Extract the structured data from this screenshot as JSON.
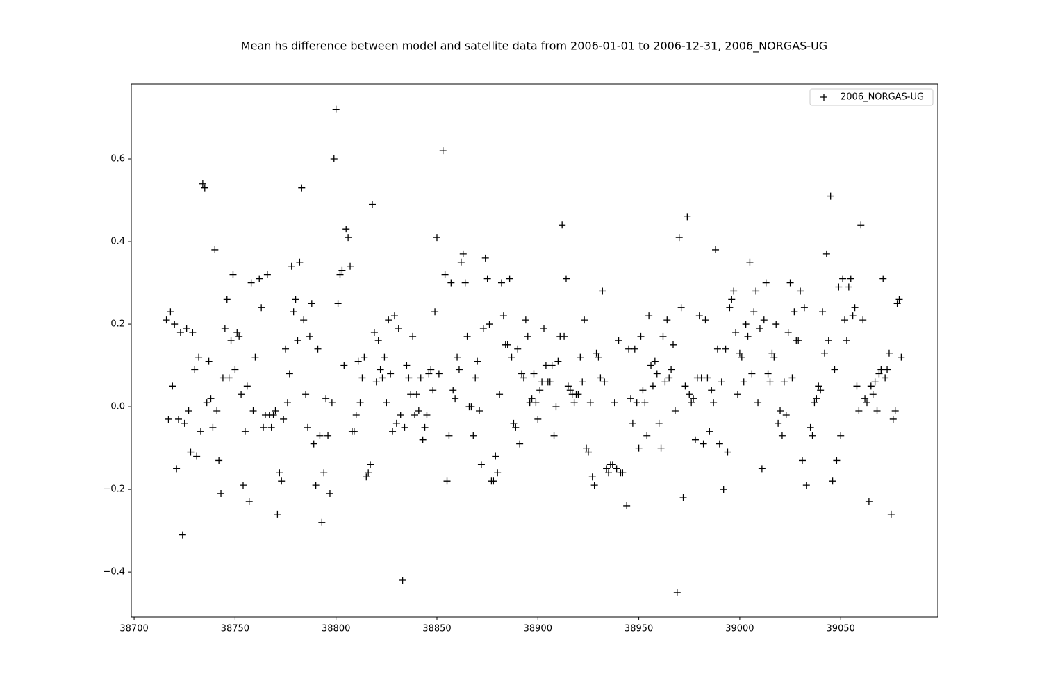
{
  "chart_data": {
    "type": "scatter",
    "title": "Mean hs difference between model and satellite data from 2006-01-01 to 2006-12-31, 2006_NORGAS-UG",
    "marker": "+",
    "legend": "upper right",
    "grid": false,
    "xlim": [
      38698.6,
      39098.1
    ],
    "ylim": [
      -0.509,
      0.7815
    ],
    "xticks": [
      38700,
      38750,
      38800,
      38850,
      38900,
      38950,
      39000,
      39050
    ],
    "yticks": [
      {
        "value": -0.4,
        "label": "−0.4"
      },
      {
        "value": -0.2,
        "label": "−0.2"
      },
      {
        "value": 0,
        "label": "0.0"
      },
      0.2,
      0.4,
      0.6
    ],
    "series": [
      {
        "name": "2006_NORGAS-UG",
        "color": "#000000",
        "x": [
          38716,
          38717,
          38718,
          38719,
          38720,
          38721,
          38722,
          38723,
          38724,
          38725,
          38726,
          38727,
          38728,
          38729,
          38730,
          38731,
          38732,
          38733,
          38734,
          38735,
          38736,
          38737,
          38738,
          38739,
          38740,
          38741,
          38742,
          38743,
          38744,
          38745,
          38746,
          38747,
          38748,
          38749,
          38750,
          38751,
          38752,
          38753,
          38754,
          38755,
          38756,
          38757,
          38758,
          38759,
          38760,
          38762,
          38763,
          38764,
          38765,
          38766,
          38767,
          38768,
          38769,
          38770,
          38771,
          38772,
          38773,
          38774,
          38775,
          38776,
          38777,
          38778,
          38779,
          38780,
          38781,
          38782,
          38783,
          38784,
          38785,
          38786,
          38787,
          38788,
          38789,
          38790,
          38791,
          38792,
          38793,
          38794,
          38795,
          38796,
          38797,
          38798,
          38799,
          38800,
          38801,
          38802,
          38803,
          38804,
          38805,
          38806,
          38807,
          38808,
          38809,
          38810,
          38811,
          38812,
          38813,
          38814,
          38815,
          38816,
          38817,
          38818,
          38819,
          38820,
          38821,
          38822,
          38823,
          38824,
          38825,
          38826,
          38827,
          38828,
          38829,
          38830,
          38831,
          38832,
          38833,
          38834,
          38835,
          38836,
          38837,
          38838,
          38839,
          38840,
          38841,
          38842,
          38843,
          38844,
          38845,
          38846,
          38847,
          38848,
          38849,
          38850,
          38851,
          38853,
          38854,
          38855,
          38856,
          38857,
          38858,
          38859,
          38860,
          38861,
          38862,
          38863,
          38864,
          38865,
          38866,
          38867,
          38868,
          38869,
          38870,
          38871,
          38872,
          38873,
          38874,
          38875,
          38876,
          38877,
          38878,
          38879,
          38880,
          38881,
          38882,
          38883,
          38884,
          38885,
          38886,
          38887,
          38888,
          38889,
          38890,
          38891,
          38892,
          38893,
          38894,
          38895,
          38896,
          38897,
          38898,
          38899,
          38900,
          38901,
          38902,
          38903,
          38904,
          38905,
          38906,
          38907,
          38908,
          38909,
          38910,
          38911,
          38912,
          38913,
          38914,
          38915,
          38916,
          38917,
          38918,
          38919,
          38920,
          38921,
          38922,
          38923,
          38924,
          38925,
          38926,
          38927,
          38928,
          38929,
          38930,
          38931,
          38932,
          38933,
          38934,
          38935,
          38936,
          38937,
          38938,
          38939,
          38940,
          38941,
          38942,
          38944,
          38945,
          38946,
          38947,
          38948,
          38949,
          38950,
          38951,
          38952,
          38953,
          38954,
          38955,
          38956,
          38957,
          38958,
          38959,
          38960,
          38961,
          38962,
          38963,
          38964,
          38965,
          38966,
          38967,
          38968,
          38969,
          38970,
          38971,
          38972,
          38973,
          38974,
          38975,
          38976,
          38977,
          38978,
          38979,
          38980,
          38981,
          38982,
          38983,
          38984,
          38985,
          38986,
          38987,
          38988,
          38989,
          38990,
          38991,
          38992,
          38993,
          38994,
          38995,
          38996,
          38997,
          38998,
          38999,
          39000,
          39001,
          39002,
          39003,
          39004,
          39005,
          39006,
          39007,
          39008,
          39009,
          39010,
          39011,
          39012,
          39013,
          39014,
          39015,
          39016,
          39017,
          39018,
          39019,
          39020,
          39021,
          39022,
          39023,
          39024,
          39025,
          39026,
          39027,
          39028,
          39029,
          39030,
          39031,
          39032,
          39033,
          39035,
          39036,
          39037,
          39038,
          39039,
          39040,
          39041,
          39042,
          39043,
          39044,
          39045,
          39046,
          39047,
          39048,
          39049,
          39050,
          39051,
          39052,
          39053,
          39054,
          39055,
          39056,
          39057,
          39058,
          39059,
          39060,
          39061,
          39062,
          39063,
          39064,
          39065,
          39066,
          39067,
          39068,
          39069,
          39070,
          39071,
          39072,
          39073,
          39074,
          39075,
          39076,
          39077,
          39078,
          39079,
          39080
        ],
        "values": [
          0.21,
          -0.03,
          0.23,
          0.05,
          0.2,
          -0.15,
          -0.03,
          0.18,
          -0.31,
          -0.04,
          0.19,
          -0.01,
          -0.11,
          0.18,
          0.09,
          -0.12,
          0.12,
          -0.06,
          0.54,
          0.53,
          0.01,
          0.11,
          0.02,
          -0.05,
          0.38,
          -0.01,
          -0.13,
          -0.21,
          0.07,
          0.19,
          0.26,
          0.07,
          0.16,
          0.32,
          0.09,
          0.18,
          0.17,
          0.03,
          -0.19,
          -0.06,
          0.05,
          -0.23,
          0.3,
          -0.01,
          0.12,
          0.31,
          0.24,
          -0.05,
          -0.02,
          0.32,
          -0.02,
          -0.05,
          -0.02,
          -0.01,
          -0.26,
          -0.16,
          -0.18,
          -0.03,
          0.14,
          0.01,
          0.08,
          0.34,
          0.23,
          0.26,
          0.16,
          0.35,
          0.53,
          0.21,
          0.03,
          -0.05,
          0.17,
          0.25,
          -0.09,
          -0.19,
          0.14,
          -0.07,
          -0.28,
          -0.16,
          0.02,
          -0.07,
          -0.21,
          0.01,
          0.6,
          0.72,
          0.25,
          0.32,
          0.33,
          0.1,
          0.43,
          0.41,
          0.34,
          -0.06,
          -0.06,
          -0.02,
          0.11,
          0.01,
          0.07,
          0.12,
          -0.17,
          -0.16,
          -0.14,
          0.49,
          0.18,
          0.06,
          0.16,
          0.09,
          0.07,
          0.12,
          0.01,
          0.21,
          0.08,
          -0.06,
          0.22,
          -0.04,
          0.19,
          -0.02,
          -0.42,
          -0.05,
          0.1,
          0.07,
          0.03,
          0.17,
          -0.02,
          0.03,
          -0.01,
          0.07,
          -0.08,
          -0.05,
          -0.02,
          0.08,
          0.09,
          0.04,
          0.23,
          0.41,
          0.08,
          0.62,
          0.32,
          -0.18,
          -0.07,
          0.3,
          0.04,
          0.02,
          0.12,
          0.09,
          0.35,
          0.37,
          0.3,
          0.17,
          0.0,
          0.0,
          -0.07,
          0.07,
          0.11,
          -0.01,
          -0.14,
          0.19,
          0.36,
          0.31,
          0.2,
          -0.18,
          -0.18,
          -0.12,
          -0.16,
          0.03,
          0.3,
          0.22,
          0.15,
          0.15,
          0.31,
          0.12,
          -0.04,
          -0.05,
          0.14,
          -0.09,
          0.08,
          0.07,
          0.21,
          0.17,
          0.01,
          0.02,
          0.08,
          0.01,
          -0.03,
          0.04,
          0.06,
          0.19,
          0.1,
          0.06,
          0.06,
          0.1,
          -0.07,
          0.0,
          0.11,
          0.17,
          0.44,
          0.17,
          0.31,
          0.05,
          0.04,
          0.03,
          0.01,
          0.03,
          0.03,
          0.12,
          0.06,
          0.21,
          -0.1,
          -0.11,
          0.01,
          -0.17,
          -0.19,
          0.13,
          0.12,
          0.07,
          0.28,
          0.06,
          -0.15,
          -0.16,
          -0.14,
          -0.14,
          0.01,
          -0.15,
          0.16,
          -0.16,
          -0.16,
          -0.24,
          0.14,
          0.02,
          -0.04,
          0.14,
          0.01,
          -0.1,
          0.17,
          0.04,
          0.01,
          -0.07,
          0.22,
          0.1,
          0.05,
          0.11,
          0.08,
          -0.04,
          -0.1,
          0.17,
          0.06,
          0.21,
          0.07,
          0.09,
          0.15,
          -0.01,
          -0.45,
          0.41,
          0.24,
          -0.22,
          0.05,
          0.46,
          0.03,
          0.01,
          0.02,
          -0.08,
          0.07,
          0.22,
          0.07,
          -0.09,
          0.21,
          0.07,
          -0.06,
          0.04,
          0.01,
          0.38,
          0.14,
          -0.09,
          0.06,
          -0.2,
          0.14,
          -0.11,
          0.24,
          0.26,
          0.28,
          0.18,
          0.03,
          0.13,
          0.12,
          0.06,
          0.2,
          0.17,
          0.35,
          0.08,
          0.23,
          0.28,
          0.01,
          0.19,
          -0.15,
          0.21,
          0.3,
          0.08,
          0.06,
          0.13,
          0.12,
          0.2,
          -0.04,
          -0.01,
          -0.07,
          0.06,
          -0.02,
          0.18,
          0.3,
          0.07,
          0.23,
          0.16,
          0.16,
          0.28,
          -0.13,
          0.24,
          -0.19,
          -0.05,
          -0.07,
          0.01,
          0.02,
          0.05,
          0.04,
          0.23,
          0.13,
          0.37,
          0.16,
          0.51,
          -0.18,
          0.09,
          -0.13,
          0.29,
          -0.07,
          0.31,
          0.21,
          0.16,
          0.29,
          0.31,
          0.22,
          0.24,
          0.05,
          -0.01,
          0.44,
          0.21,
          0.02,
          0.01,
          -0.23,
          0.05,
          0.03,
          0.06,
          -0.01,
          0.08,
          0.09,
          0.31,
          0.07,
          0.09,
          0.13,
          -0.26,
          -0.03,
          -0.01,
          0.25,
          0.26,
          0.12
        ]
      }
    ]
  }
}
